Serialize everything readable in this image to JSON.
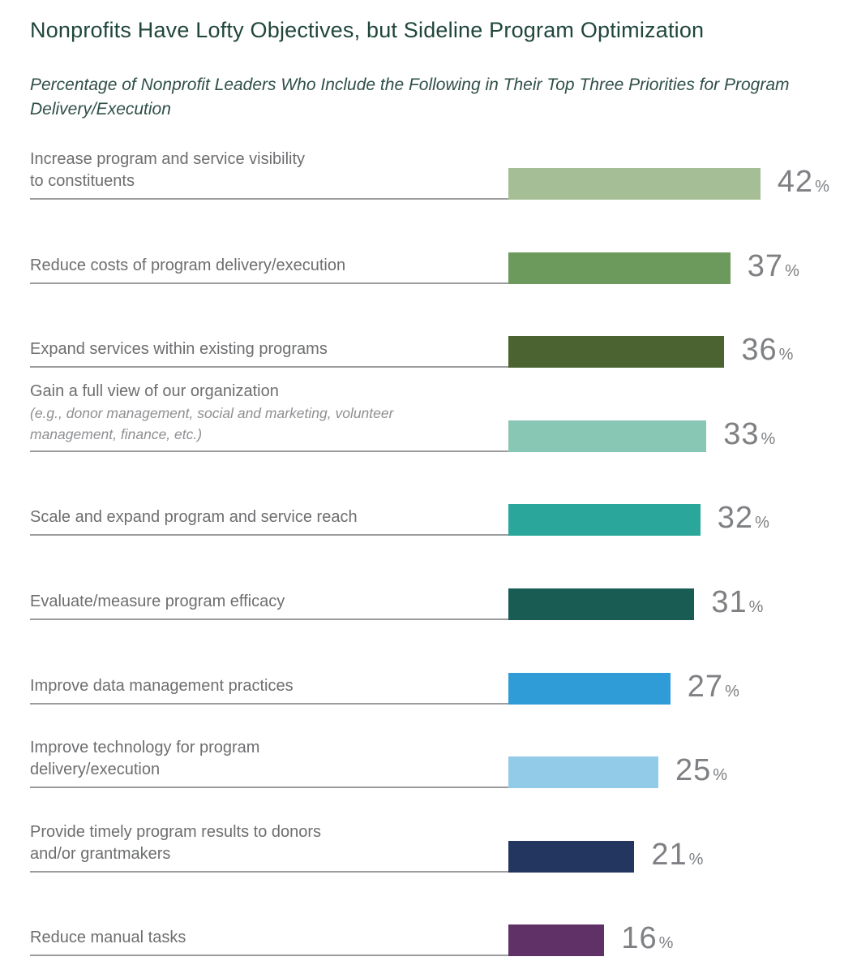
{
  "header": {
    "title": "Nonprofits Have Lofty Objectives, but Sideline Program Optimization",
    "subtitle": "Percentage of Nonprofit Leaders Who Include the Following in Their Top Three Priorities for Program Delivery/Execution"
  },
  "chart_data": {
    "type": "bar",
    "orientation": "horizontal",
    "unit": "%",
    "xlim": [
      0,
      45
    ],
    "grid": false,
    "legend": "none",
    "categories": [
      "Increase program and service visibility to constituents",
      "Reduce costs of program delivery/execution",
      "Expand services within existing programs",
      "Gain a full view of our organization (e.g., donor management, social and marketing, volunteer management, finance, etc.)",
      "Scale and expand program and service reach",
      "Evaluate/measure program efficacy",
      "Improve data management practices",
      "Improve technology for program delivery/execution",
      "Provide timely program results to donors and/or grantmakers",
      "Reduce manual tasks"
    ],
    "values": [
      42,
      37,
      36,
      33,
      32,
      31,
      27,
      25,
      21,
      16
    ],
    "items": [
      {
        "label": "Increase program and service visibility to constituents",
        "label_lines": [
          "Increase program and service visibility",
          "to constituents"
        ],
        "note_lines": [],
        "value": 42,
        "color": "#A6BE95"
      },
      {
        "label": "Reduce costs of program delivery/execution",
        "label_lines": [
          "Reduce costs of program delivery/execution"
        ],
        "note_lines": [],
        "value": 37,
        "color": "#6B9A5C"
      },
      {
        "label": "Expand services within existing programs",
        "label_lines": [
          "Expand services within existing programs"
        ],
        "note_lines": [],
        "value": 36,
        "color": "#4A6330"
      },
      {
        "label": "Gain a full view of our organization",
        "label_lines": [
          "Gain a full view of our organization"
        ],
        "note_lines": [
          "(e.g., donor management, social and marketing, volunteer",
          "management, finance, etc.)"
        ],
        "value": 33,
        "color": "#88C7B4"
      },
      {
        "label": "Scale and expand program and service reach",
        "label_lines": [
          "Scale and expand program and service reach"
        ],
        "note_lines": [],
        "value": 32,
        "color": "#2AA79A"
      },
      {
        "label": "Evaluate/measure program efficacy",
        "label_lines": [
          "Evaluate/measure program efficacy"
        ],
        "note_lines": [],
        "value": 31,
        "color": "#185C54"
      },
      {
        "label": "Improve data management practices",
        "label_lines": [
          "Improve data management practices"
        ],
        "note_lines": [],
        "value": 27,
        "color": "#2F9CD8"
      },
      {
        "label": "Improve technology for program delivery/execution",
        "label_lines": [
          "Improve technology for program",
          "delivery/execution"
        ],
        "note_lines": [],
        "value": 25,
        "color": "#92CBE8"
      },
      {
        "label": "Provide timely program results to donors and/or grantmakers",
        "label_lines": [
          "Provide timely program results to donors",
          "and/or grantmakers"
        ],
        "note_lines": [],
        "value": 21,
        "color": "#22365F"
      },
      {
        "label": "Reduce manual tasks",
        "label_lines": [
          "Reduce manual tasks"
        ],
        "note_lines": [],
        "value": 16,
        "color": "#5F3166"
      }
    ]
  }
}
